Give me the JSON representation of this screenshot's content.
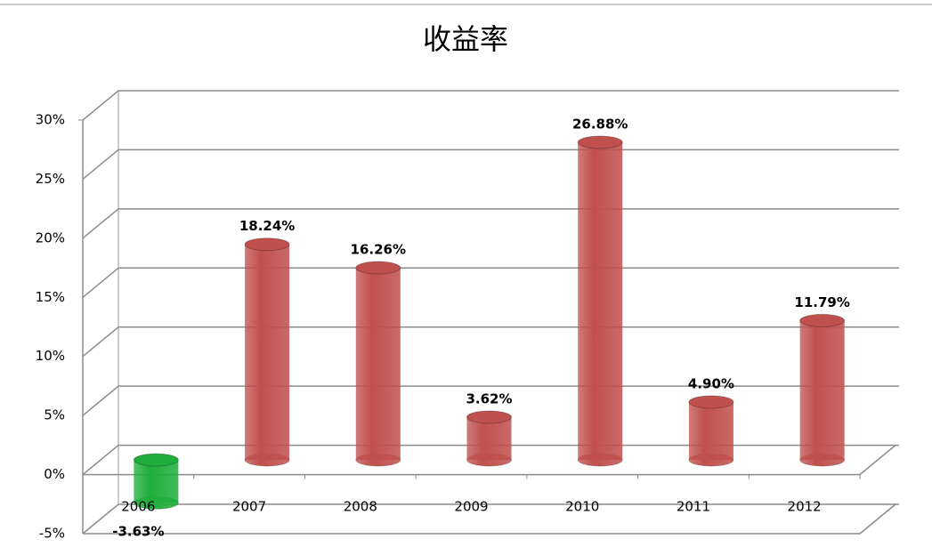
{
  "chart_data": {
    "type": "bar3d",
    "title": "收益率",
    "categories": [
      "2006",
      "2007",
      "2008",
      "2009",
      "2010",
      "2011",
      "2012"
    ],
    "values": [
      -3.63,
      18.24,
      16.26,
      3.62,
      26.88,
      4.9,
      11.79
    ],
    "value_labels": [
      "-3.63%",
      "18.24%",
      "16.26%",
      "3.62%",
      "26.88%",
      "4.90%",
      "11.79%"
    ],
    "colors": [
      "#1fae3c",
      "#c0504d",
      "#c0504d",
      "#c0504d",
      "#c0504d",
      "#c0504d",
      "#c0504d"
    ],
    "ylim": [
      -5,
      30
    ],
    "yticks": [
      {
        "value": -5,
        "label": "-5%"
      },
      {
        "value": 0,
        "label": "0%"
      },
      {
        "value": 5,
        "label": "5%"
      },
      {
        "value": 10,
        "label": "10%"
      },
      {
        "value": 15,
        "label": "15%"
      },
      {
        "value": 20,
        "label": "20%"
      },
      {
        "value": 25,
        "label": "25%"
      },
      {
        "value": 30,
        "label": "30%"
      }
    ],
    "grid": true
  }
}
